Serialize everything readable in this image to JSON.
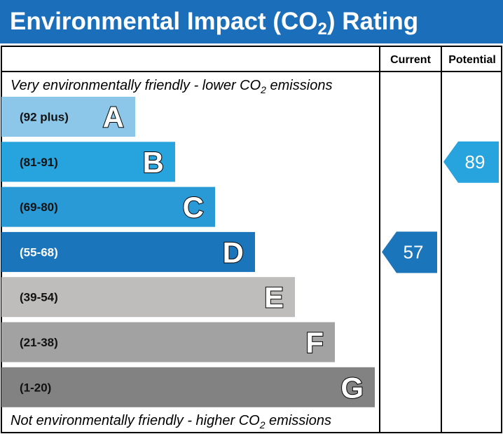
{
  "header": {
    "title": [
      "Environmental Impact (CO",
      "2",
      ") Rating"
    ]
  },
  "columns": [
    "Current",
    "Potential"
  ],
  "top_note": [
    "Very environmentally friendly - lower CO",
    "2",
    " emissions"
  ],
  "bottom_note": [
    "Not environmentally friendly - higher CO",
    "2",
    " emissions"
  ],
  "bands": [
    {
      "range": "(92 plus)",
      "letter": "A",
      "color": "#8cc7ea"
    },
    {
      "range": "(81-91)",
      "letter": "B",
      "color": "#27a3dd"
    },
    {
      "range": "(69-80)",
      "letter": "C",
      "color": "#2a9ad6"
    },
    {
      "range": "(55-68)",
      "letter": "D",
      "color": "#1b75bb"
    },
    {
      "range": "(39-54)",
      "letter": "E",
      "color": "#bebdbc"
    },
    {
      "range": "(21-38)",
      "letter": "F",
      "color": "#a3a2a2"
    },
    {
      "range": "(1-20)",
      "letter": "G",
      "color": "#828282"
    }
  ],
  "current": 57,
  "potential": 89
}
